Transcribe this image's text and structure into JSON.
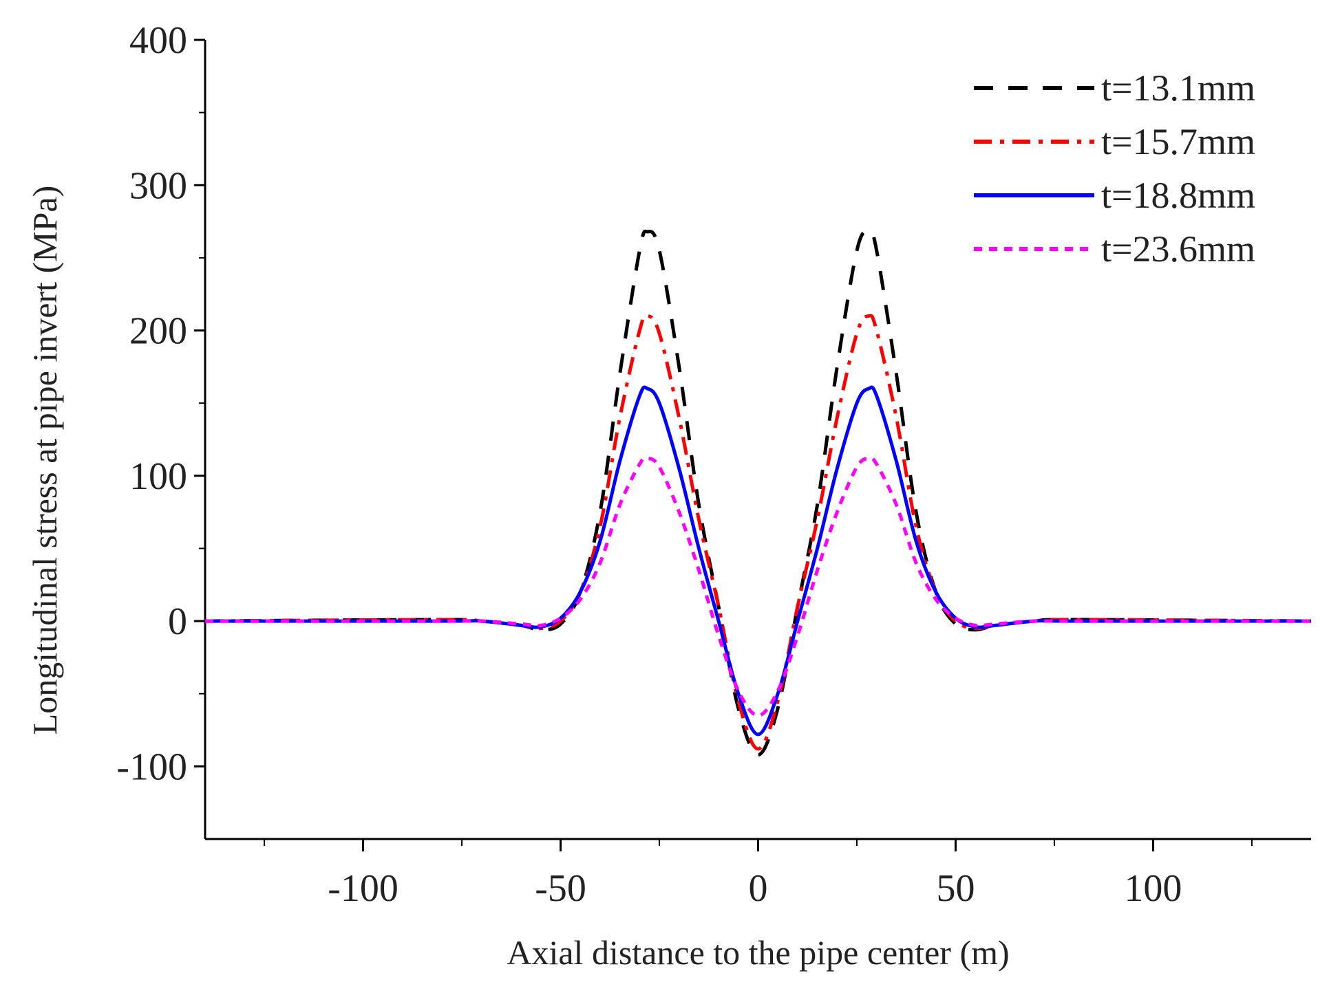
{
  "chart_data": {
    "type": "line",
    "title": "",
    "xlabel": "Axial distance to the pipe center (m)",
    "ylabel": "Longitudinal stress at pipe invert (MPa)",
    "xlim": [
      -140,
      140
    ],
    "ylim": [
      -150,
      400
    ],
    "xticks": [
      -100,
      -50,
      0,
      50,
      100
    ],
    "yticks": [
      -100,
      0,
      100,
      200,
      300,
      400
    ],
    "xtick_labels": [
      "-100",
      "-50",
      "0",
      "50",
      "100"
    ],
    "ytick_labels": [
      "-100",
      "0",
      "100",
      "200",
      "300",
      "400"
    ],
    "legend_position": "top-right",
    "series": [
      {
        "name": "t=13.1mm",
        "color": "#000000",
        "style": "dashed",
        "x": [
          -140,
          -80,
          -70,
          -60,
          -55,
          -50,
          -45,
          -40,
          -35,
          -30,
          -28,
          -25,
          -20,
          -15,
          -10,
          -5,
          0,
          5,
          10,
          15,
          20,
          25,
          28,
          30,
          35,
          40,
          45,
          50,
          55,
          60,
          70,
          80,
          140
        ],
        "y": [
          0,
          1,
          0,
          -3,
          -6,
          -2,
          20,
          75,
          170,
          255,
          268,
          255,
          175,
          80,
          10,
          -60,
          -92,
          -60,
          10,
          80,
          175,
          255,
          268,
          255,
          170,
          75,
          20,
          -2,
          -6,
          -3,
          0,
          1,
          0
        ]
      },
      {
        "name": "t=15.7mm",
        "color": "#ff0000",
        "style": "dashdot",
        "x": [
          -140,
          -80,
          -70,
          -60,
          -55,
          -50,
          -45,
          -40,
          -35,
          -30,
          -28,
          -25,
          -20,
          -15,
          -10,
          -5,
          0,
          5,
          10,
          15,
          20,
          25,
          28,
          30,
          35,
          40,
          45,
          50,
          55,
          60,
          70,
          80,
          140
        ],
        "y": [
          0,
          1,
          0,
          -3,
          -5,
          0,
          20,
          65,
          140,
          200,
          210,
          198,
          140,
          70,
          10,
          -55,
          -88,
          -55,
          10,
          70,
          140,
          198,
          210,
          200,
          140,
          65,
          20,
          0,
          -5,
          -3,
          0,
          1,
          0
        ]
      },
      {
        "name": "t=18.8mm",
        "color": "#0000ff",
        "style": "solid",
        "x": [
          -140,
          -80,
          -70,
          -60,
          -55,
          -50,
          -45,
          -40,
          -35,
          -30,
          -28,
          -25,
          -20,
          -15,
          -10,
          -5,
          0,
          5,
          10,
          15,
          20,
          25,
          28,
          30,
          35,
          40,
          45,
          50,
          55,
          60,
          70,
          80,
          140
        ],
        "y": [
          0,
          0,
          0,
          -3,
          -4,
          2,
          20,
          55,
          110,
          155,
          160,
          150,
          105,
          50,
          0,
          -50,
          -78,
          -50,
          0,
          50,
          105,
          150,
          160,
          155,
          110,
          55,
          20,
          2,
          -4,
          -3,
          0,
          0,
          0
        ]
      },
      {
        "name": "t=23.6mm",
        "color": "#ff00ff",
        "style": "dotted",
        "x": [
          -140,
          -80,
          -70,
          -60,
          -55,
          -50,
          -45,
          -40,
          -35,
          -30,
          -28,
          -25,
          -20,
          -15,
          -10,
          -5,
          0,
          5,
          10,
          15,
          20,
          25,
          28,
          30,
          35,
          40,
          45,
          50,
          55,
          60,
          70,
          80,
          140
        ],
        "y": [
          0,
          0,
          0,
          -2,
          -3,
          2,
          15,
          40,
          80,
          108,
          112,
          106,
          75,
          35,
          -10,
          -48,
          -65,
          -48,
          -10,
          35,
          75,
          106,
          112,
          108,
          80,
          40,
          15,
          2,
          -3,
          -2,
          0,
          0,
          0
        ]
      }
    ]
  }
}
